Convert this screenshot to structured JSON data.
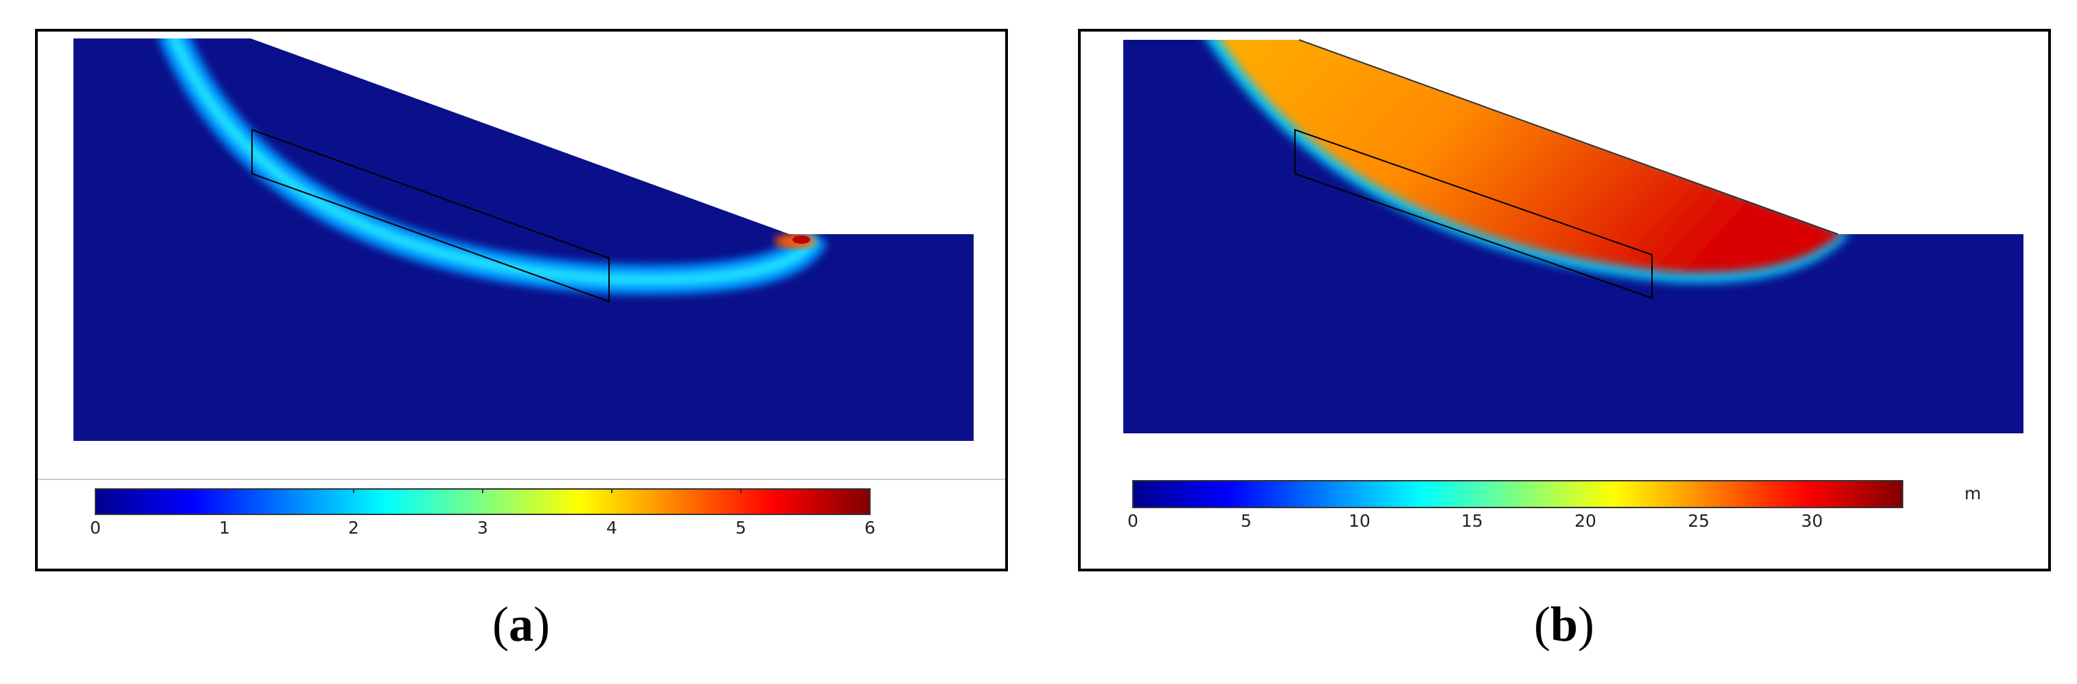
{
  "panels": [
    {
      "id": "a",
      "caption_open": "(",
      "caption_letter": "a",
      "caption_close": ")",
      "colorbar": {
        "min": 0,
        "max": 6,
        "ticks": [
          "0",
          "1",
          "2",
          "3",
          "4",
          "5",
          "6"
        ],
        "unit": ""
      }
    },
    {
      "id": "b",
      "caption_open": "(",
      "caption_letter": "b",
      "caption_close": ")",
      "colorbar": {
        "min": 0,
        "max": 34,
        "ticks": [
          "0",
          "5",
          "10",
          "15",
          "20",
          "25",
          "30"
        ],
        "unit": "m"
      }
    }
  ],
  "colors": {
    "background_field": "#0a0f8a",
    "colormap": [
      "#00008f",
      "#0040ff",
      "#00bfff",
      "#40ffbf",
      "#bfff40",
      "#ffbf00",
      "#ff4000",
      "#8f0000"
    ]
  }
}
